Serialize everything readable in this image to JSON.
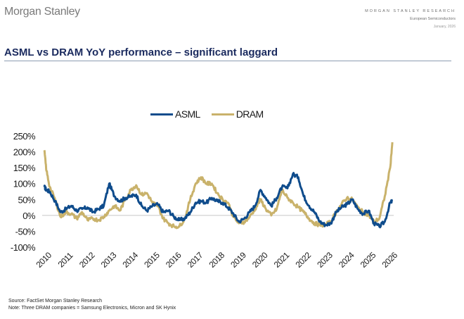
{
  "header": {
    "logo": "Morgan Stanley",
    "research_label": "MORGAN STANLEY RESEARCH",
    "sector": "European Semiconductors",
    "date": "January, 2026"
  },
  "page_title": "ASML vs DRAM YoY performance – significant laggard",
  "footer": {
    "source": "Source: FactSet Morgan Stanley Research",
    "note": "Note: Three DRAM companies = Samsung Electronics, Micron and SK Hynix"
  },
  "chart_data": {
    "type": "line",
    "title": "",
    "xlabel": "",
    "ylabel": "",
    "ylim": [
      -100,
      250
    ],
    "xlim": [
      2010,
      2026
    ],
    "y_ticks": [
      "250%",
      "200%",
      "150%",
      "100%",
      "50%",
      "0%",
      "-50%",
      "-100%"
    ],
    "y_tick_values": [
      250,
      200,
      150,
      100,
      50,
      0,
      -50,
      -100
    ],
    "x_ticks": [
      "2010",
      "2011",
      "2012",
      "2013",
      "2014",
      "2015",
      "2016",
      "2017",
      "2018",
      "2019",
      "2020",
      "2021",
      "2022",
      "2023",
      "2024",
      "2025",
      "2026"
    ],
    "x_tick_values": [
      2010,
      2011,
      2012,
      2013,
      2014,
      2015,
      2016,
      2017,
      2018,
      2019,
      2020,
      2021,
      2022,
      2023,
      2024,
      2025,
      2026
    ],
    "grid": false,
    "zero_line": true,
    "legend_position": "top-center",
    "series": [
      {
        "name": "ASML",
        "color": "#0f4c8c",
        "x": [
          2010.0,
          2010.1,
          2010.25,
          2010.5,
          2010.75,
          2011.0,
          2011.25,
          2011.5,
          2011.75,
          2012.0,
          2012.25,
          2012.5,
          2012.75,
          2013.0,
          2013.25,
          2013.5,
          2013.75,
          2014.0,
          2014.25,
          2014.5,
          2014.75,
          2015.0,
          2015.25,
          2015.5,
          2015.75,
          2016.0,
          2016.25,
          2016.5,
          2016.75,
          2017.0,
          2017.25,
          2017.5,
          2017.75,
          2018.0,
          2018.25,
          2018.5,
          2018.75,
          2019.0,
          2019.25,
          2019.5,
          2019.75,
          2020.0,
          2020.25,
          2020.5,
          2020.75,
          2021.0,
          2021.25,
          2021.5,
          2021.75,
          2022.0,
          2022.25,
          2022.5,
          2022.75,
          2023.0,
          2023.25,
          2023.5,
          2023.75,
          2024.0,
          2024.25,
          2024.5,
          2024.75,
          2025.0,
          2025.25,
          2025.5,
          2025.75,
          2026.0,
          2026.1
        ],
        "values": [
          90,
          80,
          75,
          45,
          10,
          20,
          30,
          15,
          20,
          25,
          10,
          20,
          30,
          100,
          60,
          45,
          55,
          60,
          65,
          30,
          15,
          30,
          35,
          10,
          15,
          -5,
          -15,
          -10,
          10,
          40,
          45,
          40,
          55,
          45,
          40,
          25,
          5,
          -20,
          -10,
          10,
          30,
          80,
          55,
          30,
          55,
          90,
          85,
          130,
          120,
          60,
          30,
          10,
          -20,
          -30,
          -25,
          10,
          25,
          35,
          50,
          20,
          5,
          15,
          -25,
          -35,
          -20,
          40,
          45
        ]
      },
      {
        "name": "DRAM",
        "color": "#c9b26b",
        "x": [
          2010.0,
          2010.1,
          2010.25,
          2010.5,
          2010.75,
          2011.0,
          2011.25,
          2011.5,
          2011.75,
          2012.0,
          2012.25,
          2012.5,
          2012.75,
          2013.0,
          2013.25,
          2013.5,
          2013.75,
          2014.0,
          2014.25,
          2014.5,
          2014.75,
          2015.0,
          2015.25,
          2015.5,
          2015.75,
          2016.0,
          2016.25,
          2016.5,
          2016.75,
          2017.0,
          2017.25,
          2017.5,
          2017.75,
          2018.0,
          2018.25,
          2018.5,
          2018.75,
          2019.0,
          2019.25,
          2019.5,
          2019.75,
          2020.0,
          2020.25,
          2020.5,
          2020.75,
          2021.0,
          2021.25,
          2021.5,
          2021.75,
          2022.0,
          2022.25,
          2022.5,
          2022.75,
          2023.0,
          2023.25,
          2023.5,
          2023.75,
          2024.0,
          2024.25,
          2024.5,
          2024.75,
          2025.0,
          2025.25,
          2025.5,
          2025.75,
          2026.0,
          2026.1
        ],
        "values": [
          205,
          140,
          90,
          50,
          -5,
          10,
          5,
          -10,
          10,
          -15,
          -10,
          -15,
          -5,
          15,
          30,
          15,
          50,
          80,
          95,
          65,
          70,
          40,
          30,
          -10,
          -25,
          -35,
          -35,
          -10,
          50,
          100,
          120,
          100,
          100,
          70,
          50,
          40,
          -5,
          -25,
          -20,
          -5,
          20,
          50,
          20,
          0,
          20,
          80,
          55,
          40,
          25,
          10,
          -10,
          -25,
          -30,
          -30,
          -20,
          10,
          35,
          55,
          50,
          25,
          10,
          0,
          -20,
          -10,
          60,
          150,
          230
        ]
      }
    ]
  }
}
